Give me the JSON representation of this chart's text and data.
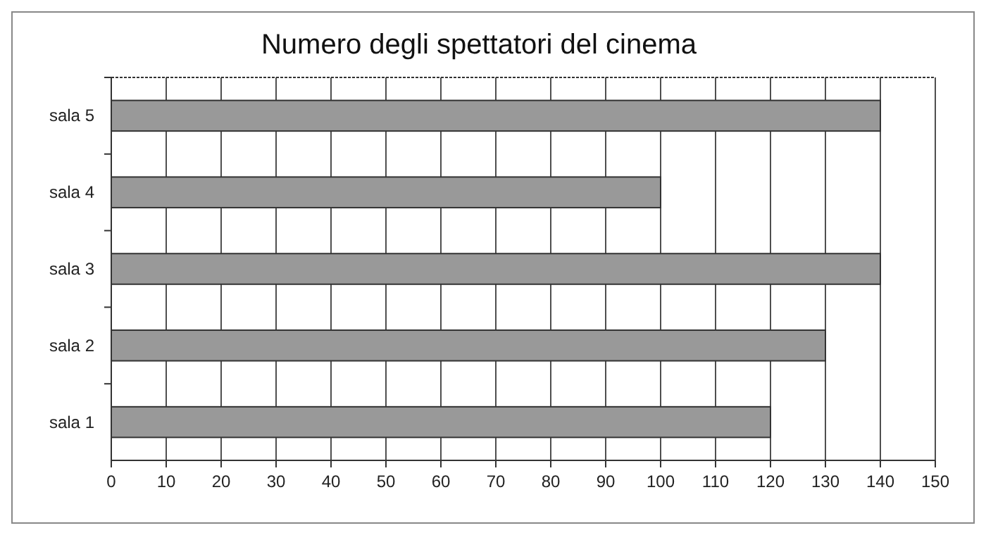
{
  "chart_data": {
    "type": "bar",
    "orientation": "horizontal",
    "title": "Numero degli spettatori del cinema",
    "categories": [
      "sala 5",
      "sala 4",
      "sala 3",
      "sala 2",
      "sala 1"
    ],
    "values": [
      140,
      100,
      140,
      130,
      120
    ],
    "color": "#999999",
    "xlim": [
      0,
      150
    ],
    "xticks": [
      0,
      10,
      20,
      30,
      40,
      50,
      60,
      70,
      80,
      90,
      100,
      110,
      120,
      130,
      140,
      150
    ],
    "grid": "x"
  }
}
